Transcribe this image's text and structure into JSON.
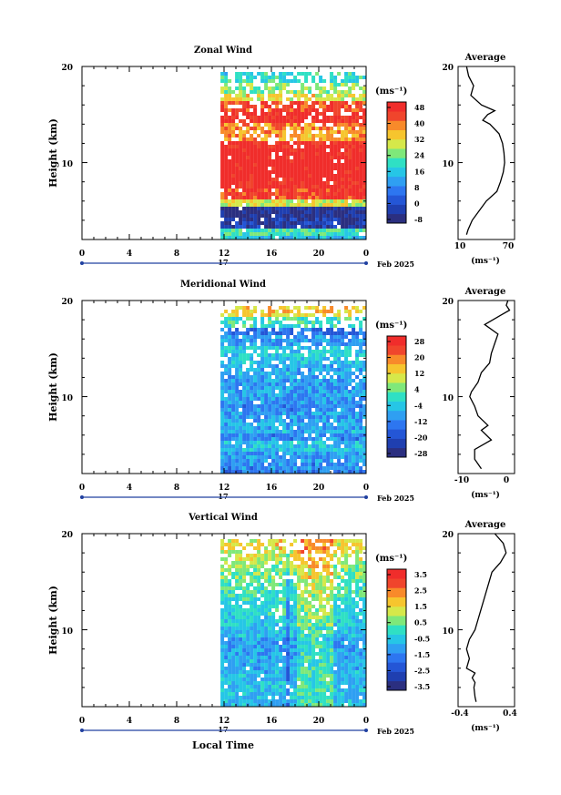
{
  "colors": {
    "scale": [
      "#2b2f80",
      "#1f3fb0",
      "#2456d6",
      "#2d76f0",
      "#2f9ff2",
      "#26c6e6",
      "#2fe0c4",
      "#7fe87a",
      "#d6e84a",
      "#f6c52e",
      "#f88a2a",
      "#f0452c",
      "#f02d2b"
    ]
  },
  "panels": [
    {
      "title": "Zonal Wind",
      "ylabel": "Height (km)",
      "yticks": [
        "20",
        "10"
      ],
      "xticks": [
        "0",
        "4",
        "8",
        "12",
        "16",
        "20",
        "0"
      ],
      "day_label": "17",
      "date_label": "Feb 2025",
      "unit_label": "(ms⁻¹)",
      "colorbar_ticks": [
        "48",
        "40",
        "32",
        "24",
        "16",
        "8",
        "0",
        "-8"
      ],
      "avg_title": "Average",
      "avg_yticks": [
        "20",
        "10"
      ],
      "avg_xticks": [
        "10",
        "70"
      ],
      "avg_unit": "(ms⁻¹)"
    },
    {
      "title": "Meridional Wind",
      "ylabel": "Height (km)",
      "yticks": [
        "20",
        "10"
      ],
      "xticks": [
        "0",
        "4",
        "8",
        "12",
        "16",
        "20",
        "0"
      ],
      "day_label": "17",
      "date_label": "Feb 2025",
      "unit_label": "(ms⁻¹)",
      "colorbar_ticks": [
        "28",
        "20",
        "12",
        "4",
        "-4",
        "-12",
        "-20",
        "-28"
      ],
      "avg_title": "Average",
      "avg_yticks": [
        "20",
        "10"
      ],
      "avg_xticks": [
        "-10",
        "0"
      ],
      "avg_unit": "(ms⁻¹)"
    },
    {
      "title": "Vertical Wind",
      "ylabel": "Height (km)",
      "yticks": [
        "20",
        "10"
      ],
      "xticks": [
        "0",
        "4",
        "8",
        "12",
        "16",
        "20",
        "0"
      ],
      "day_label": "17",
      "date_label": "Feb 2025",
      "unit_label": "(ms⁻¹)",
      "colorbar_ticks": [
        "3.5",
        "2.5",
        "1.5",
        "0.5",
        "-0.5",
        "-1.5",
        "-2.5",
        "-3.5"
      ],
      "avg_title": "Average",
      "avg_yticks": [
        "20",
        "10"
      ],
      "avg_xticks": [
        "-0.4",
        "0.4"
      ],
      "avg_unit": "(ms⁻¹)"
    }
  ],
  "xlabel": "Local Time",
  "chart_data": [
    {
      "type": "heatmap",
      "title": "Zonal Wind",
      "xlabel": "Local Time",
      "ylabel": "Height (km)",
      "xlim": [
        0,
        24
      ],
      "ylim": [
        2,
        20
      ],
      "data_start_hour": 11.7,
      "colorbar_range": [
        -12,
        52
      ],
      "color_levels": [
        -8,
        -4,
        0,
        4,
        8,
        12,
        16,
        20,
        24,
        28,
        32,
        40,
        48
      ],
      "profile_layers": [
        {
          "z": 19,
          "v": 18
        },
        {
          "z": 18,
          "v": 25
        },
        {
          "z": 17,
          "v": 32
        },
        {
          "z": 16,
          "v": 46
        },
        {
          "z": 15,
          "v": 50
        },
        {
          "z": 14,
          "v": 40
        },
        {
          "z": 13,
          "v": 38
        },
        {
          "z": 12,
          "v": 50
        },
        {
          "z": 11,
          "v": 52
        },
        {
          "z": 10,
          "v": 52
        },
        {
          "z": 9,
          "v": 52
        },
        {
          "z": 8,
          "v": 50
        },
        {
          "z": 7,
          "v": 46
        },
        {
          "z": 6,
          "v": 30
        },
        {
          "z": 5,
          "v": -8
        },
        {
          "z": 4,
          "v": -6
        },
        {
          "z": 3,
          "v": 20
        },
        {
          "z": 2.5,
          "v": 14
        }
      ]
    },
    {
      "type": "line",
      "title": "Average",
      "series": [
        {
          "x": [
            12,
            15,
            22,
            18,
            33,
            52,
            42,
            35,
            45,
            58,
            63,
            65,
            66,
            64,
            60,
            55,
            40,
            30,
            20,
            14,
            12
          ],
          "y": [
            20,
            19,
            18,
            17,
            16,
            15.4,
            15,
            14.4,
            14,
            13,
            12,
            11,
            10,
            9,
            8,
            7,
            6,
            5,
            4,
            3,
            2.5
          ]
        }
      ],
      "xlim": [
        0,
        80
      ],
      "ylim": [
        2,
        20
      ]
    },
    {
      "type": "heatmap",
      "title": "Meridional Wind",
      "xlabel": "Local Time",
      "ylabel": "Height (km)",
      "xlim": [
        0,
        24
      ],
      "ylim": [
        2,
        20
      ],
      "data_start_hour": 11.7,
      "colorbar_range": [
        -32,
        32
      ],
      "color_levels": [
        -28,
        -20,
        -12,
        -4,
        4,
        12,
        20,
        28
      ],
      "profile_layers": [
        {
          "z": 19,
          "v": 14
        },
        {
          "z": 18,
          "v": 0
        },
        {
          "z": 17,
          "v": -16
        },
        {
          "z": 16,
          "v": -10
        },
        {
          "z": 15,
          "v": -4
        },
        {
          "z": 14,
          "v": -6
        },
        {
          "z": 13,
          "v": -8
        },
        {
          "z": 12,
          "v": -9
        },
        {
          "z": 11,
          "v": -10
        },
        {
          "z": 10,
          "v": -10
        },
        {
          "z": 9,
          "v": -12
        },
        {
          "z": 8,
          "v": -10
        },
        {
          "z": 7,
          "v": -8
        },
        {
          "z": 6,
          "v": -12
        },
        {
          "z": 5,
          "v": -6
        },
        {
          "z": 4,
          "v": -10
        },
        {
          "z": 3,
          "v": -12
        },
        {
          "z": 2.5,
          "v": -14
        }
      ]
    },
    {
      "type": "line",
      "title": "Average",
      "series": [
        {
          "x": [
            1,
            0.5,
            1.5,
            -1,
            -6,
            -2,
            -3,
            -4,
            -4.5,
            -7,
            -8,
            -10,
            -10.5,
            -9,
            -8,
            -5,
            -7,
            -4,
            -9,
            -9,
            -7
          ],
          "y": [
            20,
            19.5,
            19,
            18.5,
            17.5,
            16.5,
            15.5,
            14.5,
            13.5,
            12.5,
            11.5,
            10.5,
            10,
            9,
            8,
            7,
            6.5,
            5.5,
            4.5,
            3.5,
            2.5
          ]
        }
      ],
      "xlim": [
        -14,
        3
      ],
      "ylim": [
        2,
        20
      ]
    },
    {
      "type": "heatmap",
      "title": "Vertical Wind",
      "xlabel": "Local Time",
      "ylabel": "Height (km)",
      "xlim": [
        0,
        24
      ],
      "ylim": [
        2,
        20
      ],
      "data_start_hour": 11.7,
      "colorbar_range": [
        -4,
        4
      ],
      "color_levels": [
        -3.5,
        -2.5,
        -1.5,
        -0.5,
        0.5,
        1.5,
        2.5,
        3.5
      ],
      "profile_layers": [
        {
          "z": 19,
          "v": 1.5
        },
        {
          "z": 18,
          "v": 1.2
        },
        {
          "z": 17,
          "v": 0.8
        },
        {
          "z": 16,
          "v": 0.6
        },
        {
          "z": 15,
          "v": 0.2
        },
        {
          "z": 14,
          "v": 0.0
        },
        {
          "z": 13,
          "v": -0.2
        },
        {
          "z": 12,
          "v": -0.3
        },
        {
          "z": 11,
          "v": -0.5
        },
        {
          "z": 10,
          "v": -0.8
        },
        {
          "z": 9,
          "v": -1.2
        },
        {
          "z": 8,
          "v": -1.2
        },
        {
          "z": 7,
          "v": -1.0
        },
        {
          "z": 6,
          "v": -1.0
        },
        {
          "z": 5,
          "v": -0.8
        },
        {
          "z": 4,
          "v": -0.8
        },
        {
          "z": 3,
          "v": -0.8
        },
        {
          "z": 2.5,
          "v": -0.8
        }
      ]
    },
    {
      "type": "line",
      "title": "Average",
      "series": [
        {
          "x": [
            0.15,
            0.3,
            0.35,
            0.25,
            0.1,
            0.05,
            0.0,
            -0.05,
            -0.1,
            -0.15,
            -0.2,
            -0.3,
            -0.35,
            -0.3,
            -0.35,
            -0.2,
            -0.25,
            -0.2,
            -0.22,
            -0.2,
            -0.18
          ],
          "y": [
            20,
            19,
            18,
            17,
            16,
            15,
            14,
            13,
            12,
            11,
            10,
            9,
            8,
            7,
            6,
            5.5,
            5,
            4.5,
            4,
            3,
            2.5
          ]
        }
      ],
      "xlim": [
        -0.5,
        0.5
      ],
      "ylim": [
        2,
        20
      ]
    }
  ]
}
